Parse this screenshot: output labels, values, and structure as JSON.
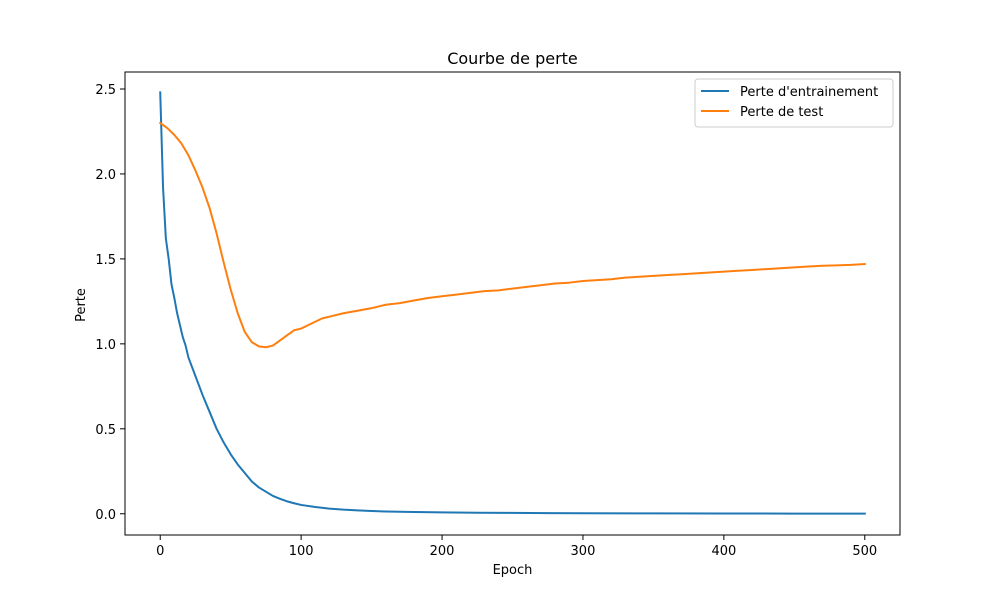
{
  "chart_data": {
    "type": "line",
    "title": "Courbe de perte",
    "xlabel": "Epoch",
    "ylabel": "Perte",
    "xlim": [
      -25,
      525
    ],
    "ylim": [
      -0.125,
      2.6
    ],
    "xticks": [
      0,
      100,
      200,
      300,
      400,
      500
    ],
    "yticks": [
      0.0,
      0.5,
      1.0,
      1.5,
      2.0,
      2.5
    ],
    "xtick_labels": [
      "0",
      "100",
      "200",
      "300",
      "400",
      "500"
    ],
    "ytick_labels": [
      "0.0",
      "0.5",
      "1.0",
      "1.5",
      "2.0",
      "2.5"
    ],
    "grid": false,
    "legend": "top-right",
    "series": [
      {
        "name": "Perte d'entrainement",
        "color": "#1f77b4",
        "x": [
          0,
          2,
          4,
          6,
          8,
          10,
          12,
          14,
          16,
          18,
          20,
          25,
          30,
          35,
          40,
          45,
          50,
          55,
          60,
          65,
          70,
          75,
          80,
          85,
          90,
          95,
          100,
          110,
          120,
          130,
          140,
          150,
          160,
          180,
          200,
          225,
          250,
          275,
          300,
          350,
          400,
          450,
          500
        ],
        "y": [
          2.48,
          1.92,
          1.62,
          1.5,
          1.35,
          1.27,
          1.18,
          1.11,
          1.04,
          0.99,
          0.92,
          0.81,
          0.7,
          0.6,
          0.5,
          0.42,
          0.35,
          0.29,
          0.24,
          0.19,
          0.155,
          0.13,
          0.105,
          0.088,
          0.073,
          0.062,
          0.052,
          0.04,
          0.03,
          0.024,
          0.02,
          0.016,
          0.013,
          0.01,
          0.008,
          0.006,
          0.005,
          0.004,
          0.003,
          0.002,
          0.0015,
          0.001,
          0.001
        ]
      },
      {
        "name": "Perte de test",
        "color": "#ff7f0e",
        "x": [
          0,
          5,
          10,
          15,
          20,
          25,
          30,
          35,
          40,
          45,
          50,
          55,
          60,
          65,
          70,
          75,
          80,
          85,
          90,
          95,
          100,
          105,
          110,
          115,
          120,
          130,
          140,
          150,
          160,
          170,
          180,
          190,
          200,
          210,
          220,
          230,
          240,
          250,
          260,
          270,
          280,
          290,
          300,
          310,
          320,
          330,
          340,
          350,
          360,
          370,
          380,
          390,
          400,
          410,
          420,
          430,
          440,
          450,
          460,
          470,
          480,
          490,
          500
        ],
        "y": [
          2.3,
          2.27,
          2.23,
          2.18,
          2.11,
          2.02,
          1.92,
          1.8,
          1.65,
          1.48,
          1.32,
          1.18,
          1.07,
          1.01,
          0.985,
          0.98,
          0.99,
          1.02,
          1.05,
          1.08,
          1.09,
          1.11,
          1.13,
          1.15,
          1.16,
          1.18,
          1.195,
          1.21,
          1.23,
          1.24,
          1.255,
          1.27,
          1.28,
          1.29,
          1.3,
          1.31,
          1.315,
          1.325,
          1.335,
          1.345,
          1.355,
          1.36,
          1.37,
          1.375,
          1.38,
          1.39,
          1.395,
          1.4,
          1.405,
          1.41,
          1.415,
          1.42,
          1.425,
          1.43,
          1.435,
          1.44,
          1.445,
          1.45,
          1.455,
          1.46,
          1.462,
          1.465,
          1.47
        ]
      }
    ]
  }
}
